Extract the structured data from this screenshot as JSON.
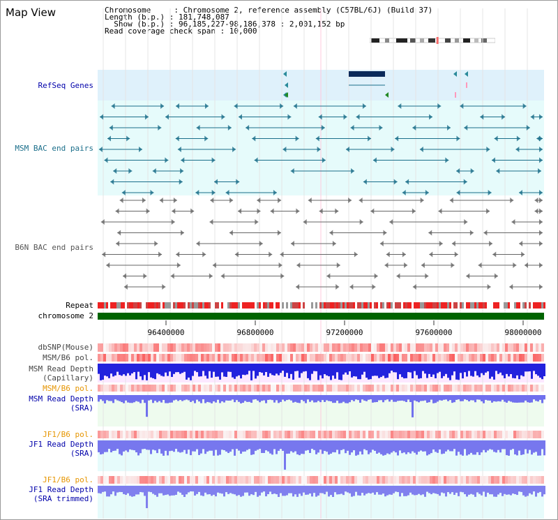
{
  "window": {
    "title": "Map View"
  },
  "header": {
    "chromosome_line": "Chromosome     : Chromosome 2, reference assembly (C57BL/6J) (Build 37)",
    "length_line": "Length (b.p.) : 181,748,087",
    "show_line": "  Show (b.p.) : 96,185,227-98,186,378 : 2,001,152 bp",
    "coverage_line": "Read coverage check span : 10,000"
  },
  "tracks": {
    "refseq": "RefSeq Genes",
    "msm_bac": "MSM BAC end pairs",
    "b6n_bac": "B6N BAC end pairs",
    "repeat": "Repeat",
    "chromosome": "chromosome 2",
    "dbsnp": "dbSNP(Mouse)",
    "msm_b6_pol_1": "MSM/B6 pol.",
    "msm_read_depth_cap_1": "MSM Read Depth",
    "msm_read_depth_cap_2": "(Capillary)",
    "msm_b6_pol_2": "MSM/B6 pol.",
    "msm_read_depth_sra_1": "MSM Read Depth",
    "msm_read_depth_sra_2": "(SRA)",
    "jf1_b6_pol_1": "JF1/B6 pol.",
    "jf1_read_depth_sra_1": "JF1 Read Depth",
    "jf1_read_depth_sra_2": "(SRA)",
    "jf1_b6_pol_2": "JF1/B6 pol.",
    "jf1_read_depth_trim_1": "JF1 Read Depth",
    "jf1_read_depth_trim_2": "(SRA trimmed)"
  },
  "axis": {
    "ticks": [
      "96400000",
      "96800000",
      "97200000",
      "97600000",
      "98000000"
    ]
  },
  "colors": {
    "refseq_bg": "#dff1fb",
    "msm_bg": "#e6fbfb",
    "msm_feature": "#1a6e8a",
    "b6n_feature": "#666666",
    "chromosome_bar": "#006400",
    "track_label_blue": "#0000aa",
    "track_label_orange": "#e69500",
    "depth_blue": "#3333dd"
  }
}
